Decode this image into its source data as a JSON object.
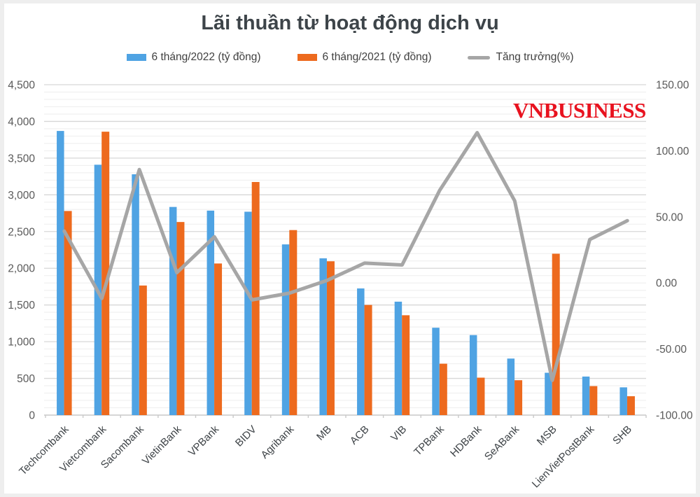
{
  "title": "Lãi thuần từ hoạt động dịch vụ",
  "watermark": "VNBUSINESS",
  "colors": {
    "bar_2022": "#4FA3E3",
    "bar_2021": "#ED6A1E",
    "growth_line": "#A6A6A6",
    "watermark_red": "#E8121F",
    "grid_major": "#D7D7D7",
    "grid_minor": "#EEEEEE",
    "axis_line": "#C9C9C9"
  },
  "legend": [
    {
      "label": "6 tháng/2022 (tỷ đồng)",
      "color": "#4FA3E3",
      "type": "bar"
    },
    {
      "label": "6 tháng/2021 (tỷ đồng)",
      "color": "#ED6A1E",
      "type": "bar"
    },
    {
      "label": "Tăng trưởng(%)",
      "color": "#A6A6A6",
      "type": "line"
    }
  ],
  "chart_data": {
    "type": "bar",
    "subtype": "combo-bar-line",
    "title": "Lãi thuần từ hoạt động dịch vụ",
    "grid": true,
    "legend_position": "top",
    "categories": [
      "Techcombank",
      "Vietcombank",
      "Sacombank",
      "VietinBank",
      "VPBank",
      "BIDV",
      "Agribank",
      "MB",
      "ACB",
      "VIB",
      "TPBank",
      "HDBank",
      "SeABank",
      "MSB",
      "LienVietPostBank",
      "SHB"
    ],
    "series": [
      {
        "name": "6 tháng/2022 (tỷ đồng)",
        "type": "bar",
        "axis": "left",
        "color": "#4FA3E3",
        "values": [
          3870,
          3410,
          3280,
          2835,
          2785,
          2770,
          2325,
          2135,
          1725,
          1545,
          1190,
          1090,
          770,
          577,
          525,
          378
        ]
      },
      {
        "name": "6 tháng/2021 (tỷ đồng)",
        "type": "bar",
        "axis": "left",
        "color": "#ED6A1E",
        "values": [
          2780,
          3860,
          1765,
          2630,
          2065,
          3175,
          2520,
          2095,
          1500,
          1360,
          700,
          510,
          475,
          2198,
          395,
          257
        ]
      },
      {
        "name": "Tăng trưởng(%)",
        "type": "line",
        "axis": "right",
        "color": "#A6A6A6",
        "values": [
          39.2,
          -11.7,
          85.8,
          7.8,
          34.9,
          -12.8,
          -7.7,
          1.9,
          15.0,
          13.6,
          70.0,
          113.7,
          62.1,
          -73.7,
          32.9,
          47.1
        ]
      }
    ],
    "left_axis": {
      "min": 0,
      "max": 4500,
      "major_step": 500,
      "minor_step": 100,
      "tick_labels": [
        "0",
        "500",
        "1,000",
        "1,500",
        "2,000",
        "2,500",
        "3,000",
        "3,500",
        "4,000",
        "4,500"
      ]
    },
    "right_axis": {
      "min": -100,
      "max": 150,
      "step": 50,
      "tick_labels": [
        "-100.00",
        "-50.00",
        "0.00",
        "50.00",
        "100.00",
        "150.00"
      ]
    }
  }
}
